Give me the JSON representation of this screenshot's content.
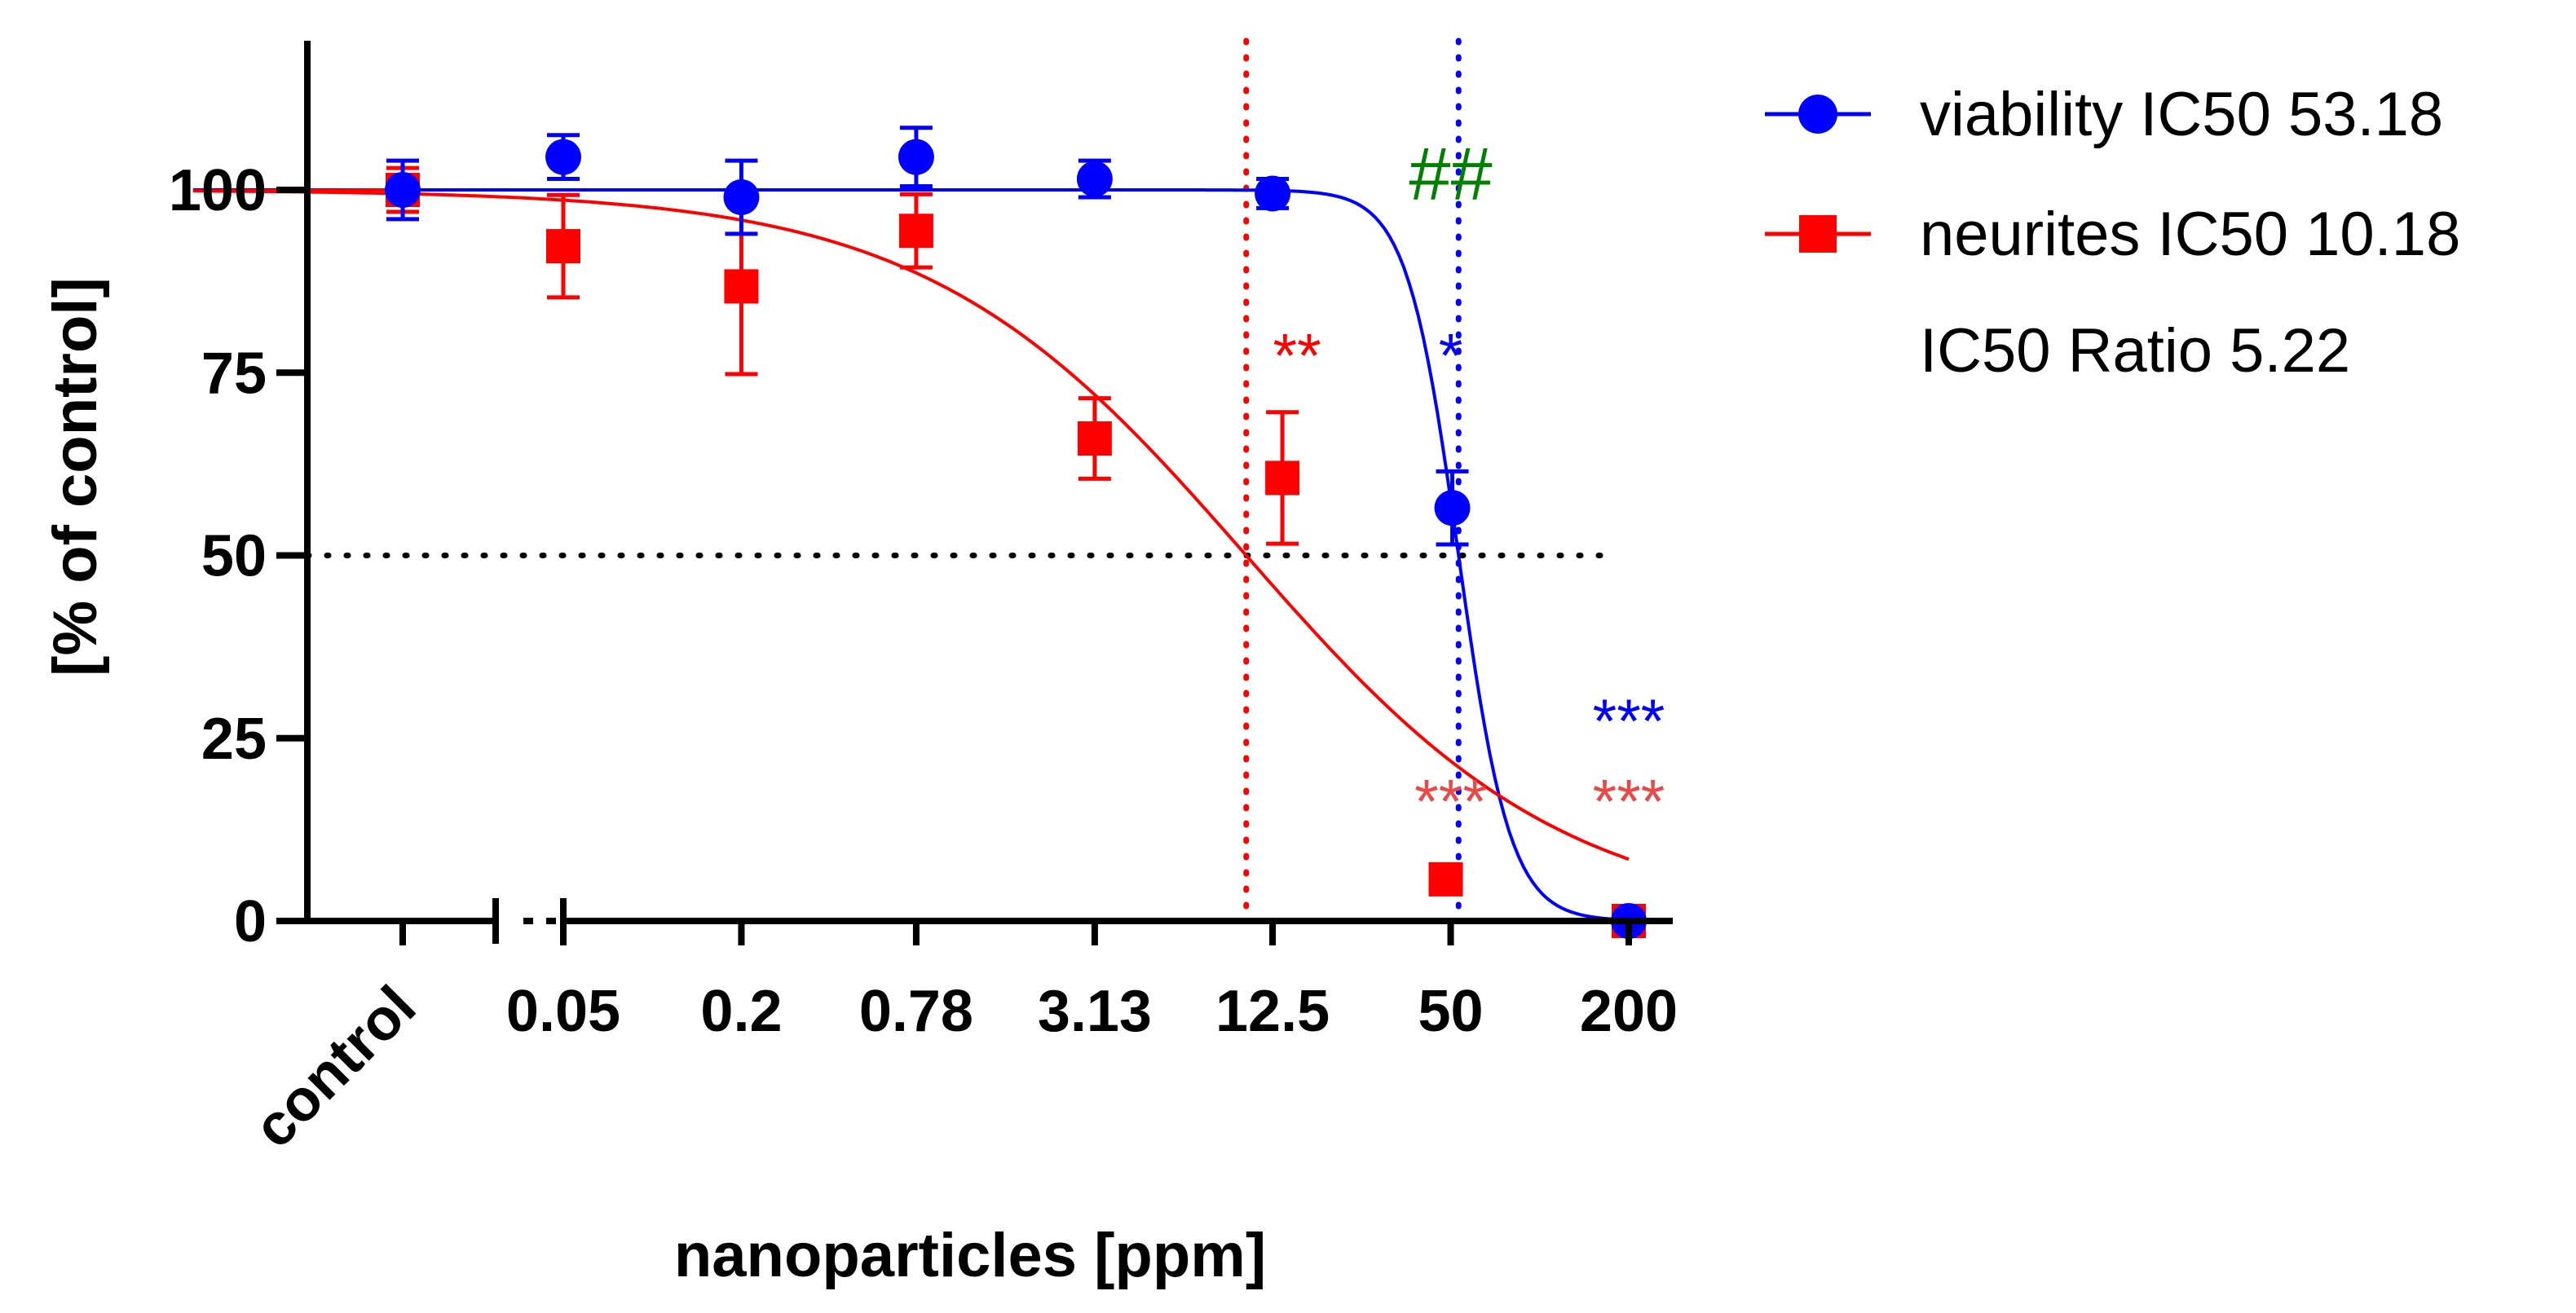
{
  "chart_data": {
    "type": "scatter",
    "title": "",
    "xlabel": "nanoparticles [ppm]",
    "ylabel": "[% of control]",
    "x_scale": "log",
    "ylim": [
      0,
      120
    ],
    "yticks": [
      0,
      25,
      50,
      75,
      100
    ],
    "ytick_labels": [
      "0",
      "25",
      "50",
      "75",
      "100"
    ],
    "xtick_labels": [
      "control",
      "0.05",
      "0.2",
      "0.78",
      "3.13",
      "12.5",
      "50",
      "200"
    ],
    "x_doses": [
      0.05,
      0.2,
      0.78,
      3.13,
      12.5,
      50,
      200
    ],
    "threshold_line": 50,
    "series": [
      {
        "name": "viability IC50 53.18",
        "color": "#0000ff",
        "marker": "circle",
        "control": {
          "value": 100,
          "error": 4
        },
        "values": [
          104.5,
          99,
          104.5,
          101.5,
          99.5,
          56.5,
          0
        ],
        "errors": [
          3,
          5,
          4,
          2.5,
          2,
          5,
          0.5
        ],
        "ic50": 53.18,
        "hill": 5
      },
      {
        "name": "neurites IC50 10.18",
        "color": "#ff0000",
        "marker": "square",
        "control": {
          "value": 100,
          "error": 3
        },
        "values": [
          92.3,
          86.8,
          94.4,
          66,
          60.6,
          5.7,
          0
        ],
        "errors": [
          7,
          12,
          5,
          5.5,
          9,
          1,
          0.5
        ],
        "ic50": 10.18,
        "hill": 0.8
      }
    ],
    "legend": {
      "position": "right",
      "entries": [
        "viability IC50 53.18",
        "neurites IC50 10.18"
      ],
      "note": "IC50 Ratio 5.22"
    },
    "annotations": [
      {
        "text": "**",
        "x": 12.5,
        "y": 80,
        "color": "#ff0000"
      },
      {
        "text": "*",
        "x": 50,
        "y": 80,
        "color": "#0000ff"
      },
      {
        "text": "##",
        "x": 50,
        "y": 102,
        "color": "#008000"
      },
      {
        "text": "***",
        "x": 50,
        "y": 19,
        "color": "#e84a4a"
      },
      {
        "text": "***",
        "x": 200,
        "y": 30,
        "color": "#0000ff"
      },
      {
        "text": "***",
        "x": 200,
        "y": 19,
        "color": "#e84a4a"
      }
    ]
  }
}
